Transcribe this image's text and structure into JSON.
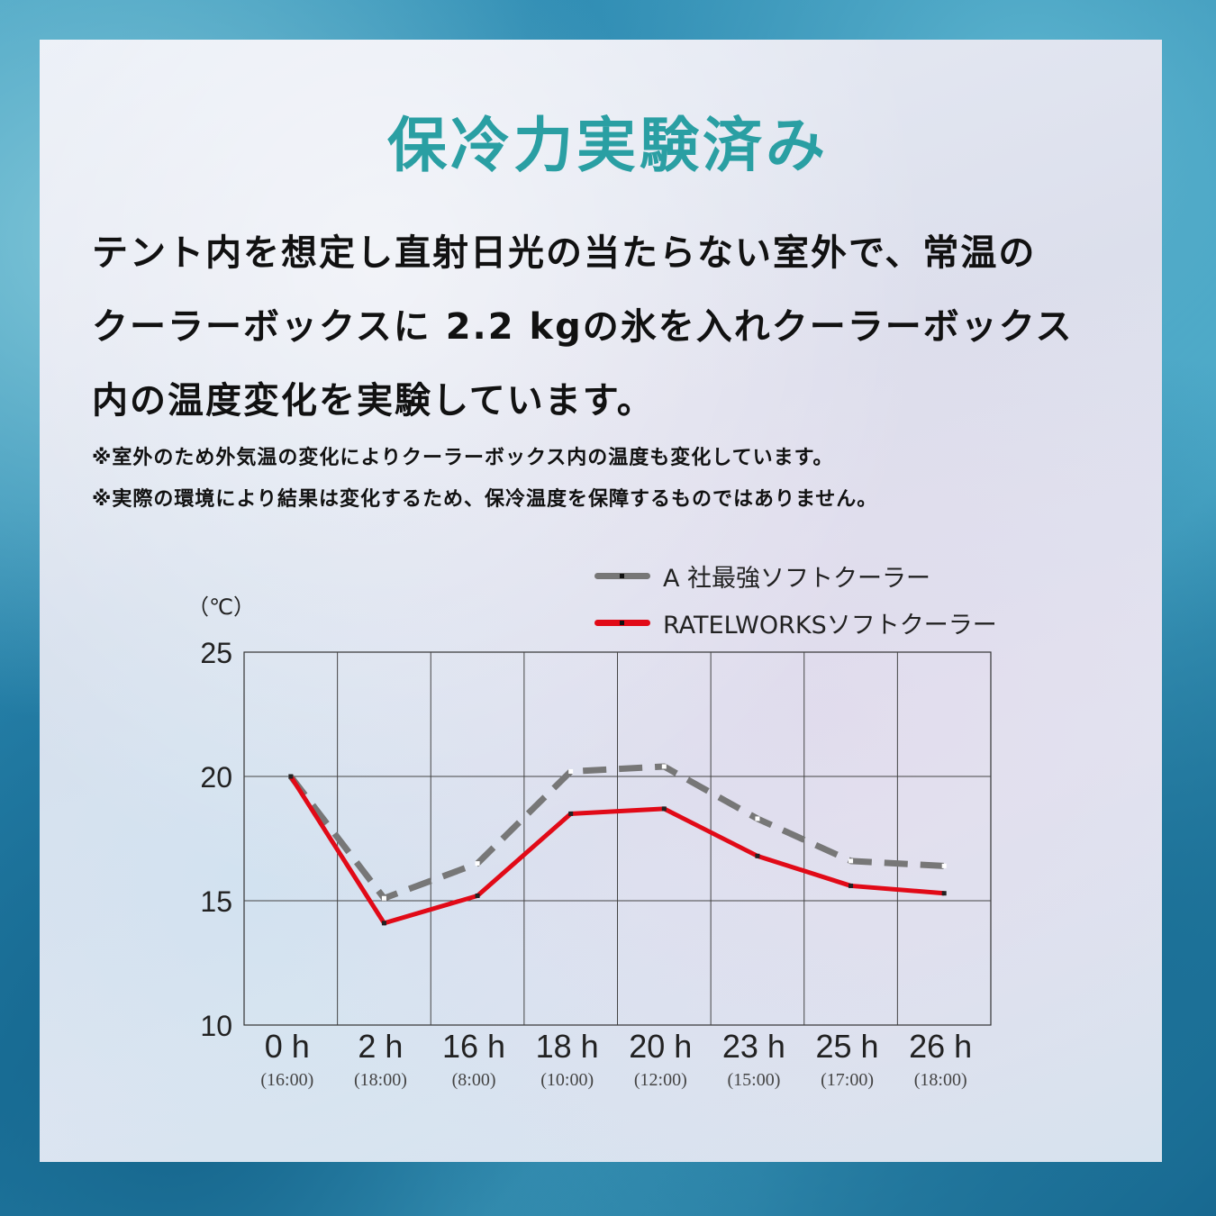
{
  "title": "保冷力実験済み",
  "description": [
    "テント内を想定し直射日光の当たらない室外で、常温の",
    "クーラーボックスに 2.2 kgの氷を入れクーラーボックス",
    "内の温度変化を実験しています。"
  ],
  "notes": [
    "※室外のため外気温の変化によりクーラーボックス内の温度も変化しています。",
    "※実際の環境により結果は変化するため、保冷温度を保障するものではありません。"
  ],
  "colors": {
    "title": "#2a9fa3",
    "series_a": "#777777",
    "series_ratel": "#e10a17"
  },
  "chart_data": {
    "type": "line",
    "ylabel": "（℃）",
    "ylim": [
      10,
      25
    ],
    "yticks": [
      10,
      15,
      20,
      25
    ],
    "grid": true,
    "legend_position": "top-right",
    "categories": [
      "0 h",
      "2 h",
      "16 h",
      "18 h",
      "20 h",
      "23 h",
      "25 h",
      "26 h"
    ],
    "sublabels": [
      "(16:00)",
      "(18:00)",
      "(8:00)",
      "(10:00)",
      "(12:00)",
      "(15:00)",
      "(17:00)",
      "(18:00)"
    ],
    "series": [
      {
        "name": "A 社最強ソフトクーラー",
        "style": "dashed",
        "color": "#777777",
        "values": [
          20.0,
          15.1,
          16.5,
          20.2,
          20.4,
          18.3,
          16.6,
          16.4
        ]
      },
      {
        "name": "RATELWORKSソフトクーラー",
        "style": "solid",
        "color": "#e10a17",
        "values": [
          20.0,
          14.1,
          15.2,
          18.5,
          18.7,
          16.8,
          15.6,
          15.3
        ]
      }
    ]
  }
}
